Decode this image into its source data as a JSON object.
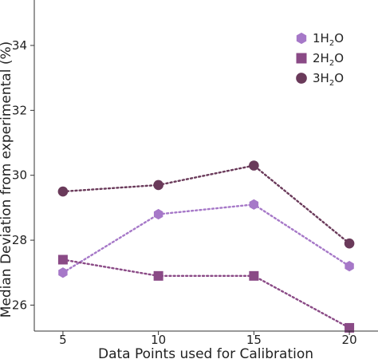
{
  "chart_data": {
    "type": "line",
    "x": [
      5,
      10,
      15,
      20
    ],
    "xlabel": "Data Points used for Calibration",
    "ylabel": "Median Deviation from experimental (%)",
    "xlim": [
      3.5,
      21.5
    ],
    "ylim": [
      25.2,
      35.4
    ],
    "xticks": [
      5,
      10,
      15,
      20
    ],
    "yticks": [
      26,
      28,
      30,
      32,
      34
    ],
    "grid": false,
    "legend_position": "top-right",
    "series": [
      {
        "name": "1H2O",
        "legend_parts": [
          "1H",
          "2",
          "O"
        ],
        "marker": "hexagon",
        "color": "#a678c8",
        "values": [
          27.0,
          28.8,
          29.1,
          27.2
        ]
      },
      {
        "name": "2H2O",
        "legend_parts": [
          "2H",
          "2",
          "O"
        ],
        "marker": "square",
        "color": "#8a4a86",
        "values": [
          27.4,
          26.9,
          26.9,
          25.3
        ]
      },
      {
        "name": "3H2O",
        "legend_parts": [
          "3H",
          "2",
          "O"
        ],
        "marker": "circle",
        "color": "#6a3a5a",
        "values": [
          29.5,
          29.7,
          30.3,
          27.9
        ]
      }
    ]
  }
}
